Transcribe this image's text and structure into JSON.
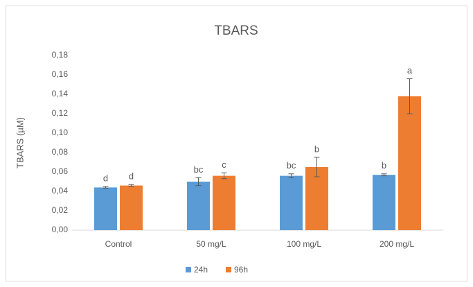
{
  "chart_data": {
    "type": "bar",
    "title": "TBARS",
    "y_label": "TBARS (µM)",
    "categories": [
      "Control",
      "50 mg/L",
      "100 mg/L",
      "200 mg/L"
    ],
    "series": [
      {
        "name": "24h",
        "color": "#5b9bd5",
        "values": [
          0.044,
          0.05,
          0.056,
          0.057
        ],
        "errors": [
          0.001,
          0.004,
          0.002,
          0.001
        ],
        "annotations": [
          "d",
          "bc",
          "bc",
          "b"
        ]
      },
      {
        "name": "96h",
        "color": "#ed7d31",
        "values": [
          0.046,
          0.056,
          0.065,
          0.138
        ],
        "errors": [
          0.001,
          0.003,
          0.01,
          0.018
        ],
        "annotations": [
          "d",
          "c",
          "b",
          "a"
        ]
      }
    ],
    "ylim": [
      0,
      0.18
    ],
    "yticks": [
      {
        "value": 0,
        "label": "0,00"
      },
      {
        "value": 0.02,
        "label": "0,02"
      },
      {
        "value": 0.04,
        "label": "0,04"
      },
      {
        "value": 0.06,
        "label": "0,06"
      },
      {
        "value": 0.08,
        "label": "0,08"
      },
      {
        "value": 0.1,
        "label": "0,10"
      },
      {
        "value": 0.12,
        "label": "0,12"
      },
      {
        "value": 0.14,
        "label": "0,14"
      },
      {
        "value": 0.16,
        "label": "0,16"
      },
      {
        "value": 0.18,
        "label": "0,18"
      }
    ],
    "grid": false,
    "legend": "bottom"
  }
}
